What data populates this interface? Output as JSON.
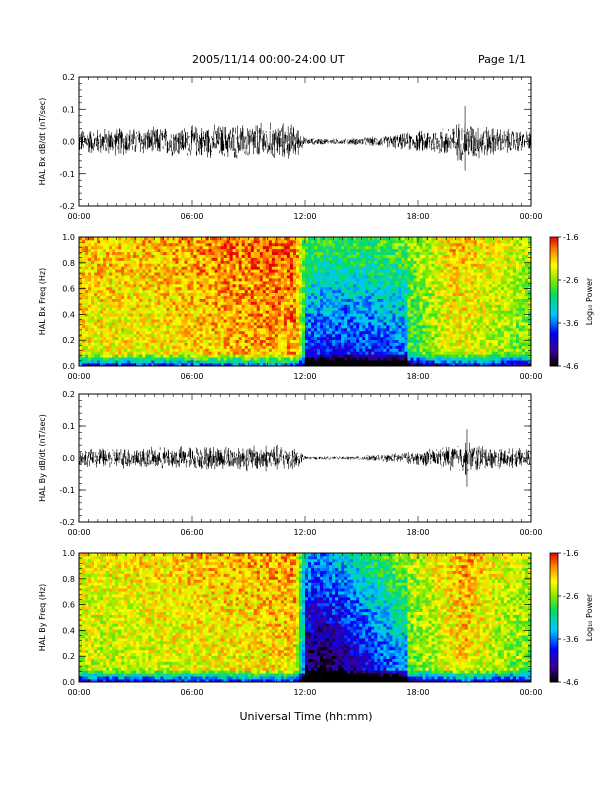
{
  "header": {
    "title": "2005/11/14  00:00-24:00 UT",
    "page": "Page 1/1"
  },
  "xlabel": "Universal Time (hh:mm)",
  "chart_data": [
    {
      "type": "line",
      "ylabel": "HAL Bx dB/dt (nT/sec)",
      "xlim_hours": [
        0,
        24
      ],
      "x_tick_labels": [
        "00:00",
        "06:00",
        "12:00",
        "18:00",
        "00:00"
      ],
      "ylim": [
        -0.2,
        0.2
      ],
      "y_ticks": [
        "-0.2",
        "-0.1",
        "0.0",
        "0.1",
        "0.2"
      ],
      "envelope": {
        "hours": [
          0,
          2,
          4,
          6,
          8,
          10,
          11.5,
          12,
          14,
          16,
          18,
          19.5,
          20.5,
          22,
          24
        ],
        "amplitude": [
          0.035,
          0.04,
          0.04,
          0.045,
          0.05,
          0.055,
          0.05,
          0.01,
          0.008,
          0.015,
          0.03,
          0.045,
          0.06,
          0.04,
          0.03
        ]
      },
      "peaks": [
        {
          "hour": 20.5,
          "max": 0.11,
          "min": -0.09
        }
      ]
    },
    {
      "type": "heatmap",
      "ylabel": "HAL Bx Freq (Hz)",
      "xlim_hours": [
        0,
        24
      ],
      "x_tick_labels": [
        "00:00",
        "06:00",
        "12:00",
        "18:00",
        "00:00"
      ],
      "ylim": [
        0,
        1.0
      ],
      "y_ticks": [
        "0.0",
        "0.2",
        "0.4",
        "0.6",
        "0.8",
        "1.0"
      ],
      "colorbar": {
        "label": "Log₁₀ Power",
        "ticks": [
          "-1.6",
          "-2.6",
          "-3.6",
          "-4.6"
        ],
        "range": [
          -4.6,
          -1.6
        ]
      },
      "time_profile": {
        "hours": [
          0,
          4,
          8,
          11.5,
          12,
          14,
          16,
          18,
          20,
          22,
          24
        ],
        "level": [
          -2.2,
          -2.2,
          -2.0,
          -1.9,
          -2.9,
          -3.0,
          -2.9,
          -2.7,
          -2.2,
          -2.4,
          -2.6
        ]
      }
    },
    {
      "type": "line",
      "ylabel": "HAL By dB/dt (nT/sec)",
      "xlim_hours": [
        0,
        24
      ],
      "x_tick_labels": [
        "00:00",
        "06:00",
        "12:00",
        "18:00",
        "00:00"
      ],
      "ylim": [
        -0.2,
        0.2
      ],
      "y_ticks": [
        "-0.2",
        "-0.1",
        "0.0",
        "0.1",
        "0.2"
      ],
      "envelope": {
        "hours": [
          0,
          2,
          4,
          6,
          8,
          10,
          11.5,
          12,
          14,
          16,
          18,
          19.5,
          20.5,
          22,
          24
        ],
        "amplitude": [
          0.025,
          0.03,
          0.03,
          0.035,
          0.035,
          0.04,
          0.035,
          0.005,
          0.004,
          0.01,
          0.02,
          0.035,
          0.05,
          0.03,
          0.025
        ]
      },
      "peaks": [
        {
          "hour": 20.6,
          "max": 0.09,
          "min": -0.09
        }
      ]
    },
    {
      "type": "heatmap",
      "ylabel": "HAL By Freq (Hz)",
      "xlim_hours": [
        0,
        24
      ],
      "x_tick_labels": [
        "00:00",
        "06:00",
        "12:00",
        "18:00",
        "00:00"
      ],
      "ylim": [
        0,
        1.0
      ],
      "y_ticks": [
        "0.0",
        "0.2",
        "0.4",
        "0.6",
        "0.8",
        "1.0"
      ],
      "colorbar": {
        "label": "Log₁₀ Power",
        "ticks": [
          "-1.6",
          "-2.6",
          "-3.6",
          "-4.6"
        ],
        "range": [
          -4.6,
          -1.6
        ]
      },
      "time_profile": {
        "hours": [
          0,
          4,
          8,
          11.5,
          12,
          13,
          15,
          17,
          19,
          20.5,
          22,
          24
        ],
        "level": [
          -2.4,
          -2.3,
          -2.2,
          -2.1,
          -3.5,
          -3.6,
          -3.2,
          -2.7,
          -2.4,
          -2.1,
          -2.4,
          -2.6
        ]
      }
    }
  ]
}
